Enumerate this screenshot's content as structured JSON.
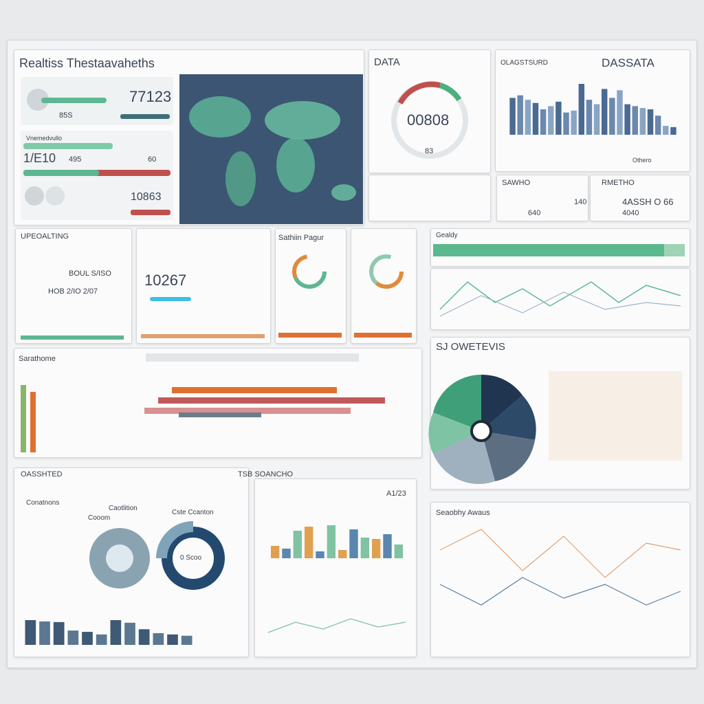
{
  "header": {
    "title": "Realtiss Thestaavaheths"
  },
  "kpi": {
    "value": "77123",
    "label": "85S",
    "caption": "Vnemedvullo",
    "big": "1/E10",
    "small": "495",
    "badge": "60",
    "total": "10863"
  },
  "gauge": {
    "title": "DATA",
    "value": "00808",
    "sub": "83"
  },
  "bar_panel": {
    "subtitle": "OLAGSTSURD",
    "title": "DASSATA",
    "legend": "Othero",
    "values": [
      58,
      62,
      55,
      50,
      40,
      45,
      52,
      35,
      38,
      80,
      55,
      48,
      72,
      58,
      70,
      48,
      45,
      42,
      40,
      30,
      14,
      12
    ]
  },
  "stat_a": {
    "title": "SAWHO",
    "value": "140",
    "sub": "640"
  },
  "stat_b": {
    "title": "RMETHO",
    "value": "4ASSH O 66",
    "sub": "4040"
  },
  "update": {
    "title": "UPEOALTING",
    "line1": "BOUL S/ISO",
    "line2": "HOB 2/IO 2/07"
  },
  "counter": {
    "value": "10267"
  },
  "donut_panel": {
    "title": "Sathiin Pagur"
  },
  "progress": {
    "title": "Gealdy"
  },
  "gantt": {
    "title": "Sarathome"
  },
  "radial": {
    "title": "SJ OWETEVIS"
  },
  "overview": {
    "title": "OASSHTED",
    "label1": "Conatnons",
    "label2": "Caotlition",
    "label3": "Cste Ccanton",
    "label4": "Cooom",
    "center": "0 Scoo",
    "values": [
      38,
      36,
      35,
      22,
      20,
      16,
      38,
      34,
      24,
      18,
      16,
      14
    ]
  },
  "tsb": {
    "title": "TSB SOANCHO",
    "value": "A1/23",
    "values": [
      18,
      14,
      40,
      46,
      10,
      48,
      12,
      42,
      30,
      28,
      35,
      20
    ]
  },
  "trend": {
    "title": "Seaobhy Awaus"
  }
}
